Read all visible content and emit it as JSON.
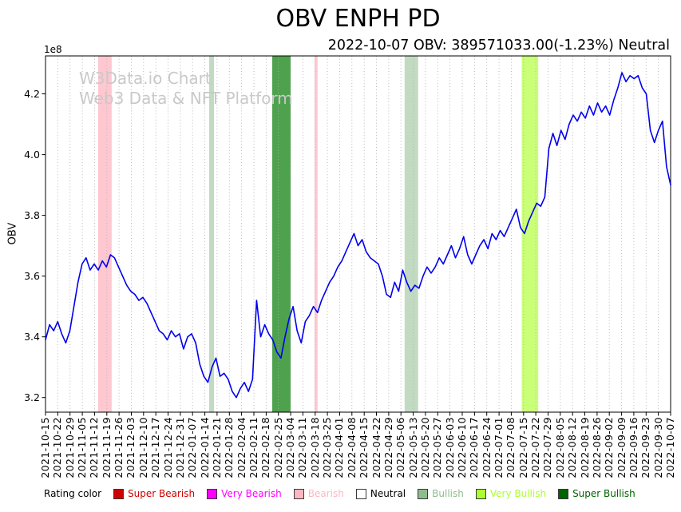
{
  "watermark": {
    "line1": "W3Data.io Chart",
    "line2": "Web3 Data & NFT Platform"
  },
  "legend": {
    "title": "Rating color",
    "items": [
      {
        "label": "Super Bearish",
        "color": "#cc0000"
      },
      {
        "label": "Very Bearish",
        "color": "#ff00ff"
      },
      {
        "label": "Bearish",
        "color": "#ffb6c1"
      },
      {
        "label": "Neutral",
        "color": "#ffffff",
        "text_color": "#000000"
      },
      {
        "label": "Bullish",
        "color": "#8fbc8f"
      },
      {
        "label": "Very Bullish",
        "color": "#adff2f"
      },
      {
        "label": "Super Bullish",
        "color": "#006400"
      }
    ]
  },
  "chart_data": {
    "type": "line",
    "title": "OBV ENPH PD",
    "subtitle": "2022-10-07 OBV: 389571033.00(-1.23%) Neutral",
    "ylabel": "OBV",
    "y_offset_label": "1e8",
    "yticks": [
      3.2,
      3.4,
      3.6,
      3.8,
      4.0,
      4.2
    ],
    "ylim": [
      3.152,
      4.325
    ],
    "grid": "vertical dotted gridlines at weekly ticks",
    "legend_position": "bottom",
    "categories": [
      "2021-10-15",
      "2021-10-22",
      "2021-10-29",
      "2021-11-05",
      "2021-11-12",
      "2021-11-19",
      "2021-11-26",
      "2021-12-03",
      "2021-12-10",
      "2021-12-17",
      "2021-12-24",
      "2021-12-31",
      "2022-01-07",
      "2022-01-14",
      "2022-01-21",
      "2022-01-28",
      "2022-02-04",
      "2022-02-11",
      "2022-02-18",
      "2022-02-25",
      "2022-03-04",
      "2022-03-11",
      "2022-03-18",
      "2022-03-25",
      "2022-04-01",
      "2022-04-08",
      "2022-04-15",
      "2022-04-22",
      "2022-04-29",
      "2022-05-06",
      "2022-05-13",
      "2022-05-20",
      "2022-05-27",
      "2022-06-03",
      "2022-06-10",
      "2022-06-17",
      "2022-06-24",
      "2022-07-01",
      "2022-07-08",
      "2022-07-15",
      "2022-07-22",
      "2022-07-29",
      "2022-08-05",
      "2022-08-12",
      "2022-08-19",
      "2022-08-26",
      "2022-09-02",
      "2022-09-09",
      "2022-09-16",
      "2022-09-23",
      "2022-09-30",
      "2022-10-07"
    ],
    "series": [
      {
        "name": "OBV",
        "color": "#0000ee",
        "unit": "1e8",
        "values": [
          3.39,
          3.44,
          3.42,
          3.45,
          3.41,
          3.38,
          3.42,
          3.5,
          3.58,
          3.64,
          3.66,
          3.62,
          3.64,
          3.62,
          3.65,
          3.63,
          3.67,
          3.66,
          3.63,
          3.6,
          3.57,
          3.55,
          3.54,
          3.52,
          3.53,
          3.51,
          3.48,
          3.45,
          3.42,
          3.41,
          3.39,
          3.42,
          3.4,
          3.41,
          3.36,
          3.4,
          3.41,
          3.38,
          3.31,
          3.27,
          3.25,
          3.3,
          3.33,
          3.27,
          3.28,
          3.26,
          3.22,
          3.2,
          3.23,
          3.25,
          3.22,
          3.26,
          3.52,
          3.4,
          3.44,
          3.41,
          3.39,
          3.35,
          3.33,
          3.4,
          3.46,
          3.5,
          3.42,
          3.38,
          3.45,
          3.47,
          3.5,
          3.48,
          3.52,
          3.55,
          3.58,
          3.6,
          3.63,
          3.65,
          3.68,
          3.71,
          3.74,
          3.7,
          3.72,
          3.68,
          3.66,
          3.65,
          3.64,
          3.6,
          3.54,
          3.53,
          3.58,
          3.55,
          3.62,
          3.58,
          3.55,
          3.57,
          3.56,
          3.6,
          3.63,
          3.61,
          3.63,
          3.66,
          3.64,
          3.67,
          3.7,
          3.66,
          3.69,
          3.73,
          3.67,
          3.64,
          3.67,
          3.7,
          3.72,
          3.69,
          3.74,
          3.72,
          3.75,
          3.73,
          3.76,
          3.79,
          3.82,
          3.76,
          3.74,
          3.78,
          3.81,
          3.84,
          3.83,
          3.86,
          4.02,
          4.07,
          4.03,
          4.08,
          4.05,
          4.1,
          4.13,
          4.11,
          4.14,
          4.12,
          4.16,
          4.13,
          4.17,
          4.14,
          4.16,
          4.13,
          4.18,
          4.22,
          4.27,
          4.24,
          4.26,
          4.25,
          4.26,
          4.22,
          4.2,
          4.08,
          4.04,
          4.08,
          4.11,
          3.96,
          3.9
        ]
      }
    ],
    "bands": [
      {
        "rating": "Bearish",
        "from_week": 4.3,
        "to_week": 5.4,
        "color": "rgba(255,182,193,0.75)"
      },
      {
        "rating": "Bullish",
        "from_week": 13.35,
        "to_week": 13.75,
        "color": "rgba(143,188,143,0.55)"
      },
      {
        "rating": "Super Bullish",
        "from_week": 18.5,
        "to_week": 20.0,
        "color": "rgba(34,139,34,0.8)"
      },
      {
        "rating": "Bearish",
        "from_week": 21.95,
        "to_week": 22.2,
        "color": "rgba(255,182,193,0.75)"
      },
      {
        "rating": "Bullish",
        "from_week": 29.3,
        "to_week": 30.4,
        "color": "rgba(143,188,143,0.55)"
      },
      {
        "rating": "Very Bullish",
        "from_week": 38.85,
        "to_week": 40.2,
        "color": "rgba(173,255,47,0.65)"
      }
    ]
  }
}
